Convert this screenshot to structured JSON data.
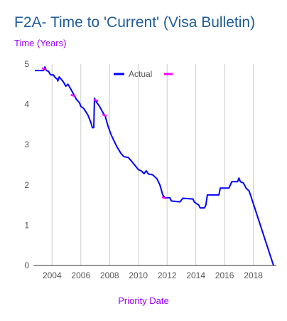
{
  "chart_data": {
    "type": "line",
    "title": "F2A- Time to 'Current' (Visa Bulletin)",
    "ylabel": "Time (Years)",
    "xlabel": "Priority Date",
    "xlim": [
      2002.7,
      2019.6
    ],
    "ylim": [
      0,
      5
    ],
    "x_ticks": [
      2004,
      2006,
      2008,
      2010,
      2012,
      2014,
      2016,
      2018
    ],
    "x_tick_labels": [
      "2004",
      "2006",
      "2008",
      "2010",
      "2012",
      "2014",
      "2016",
      "2018"
    ],
    "y_ticks": [
      0,
      1,
      2,
      3,
      4,
      5
    ],
    "y_tick_labels": [
      "0",
      "1",
      "2",
      "3",
      "4",
      "5"
    ],
    "grid": "vertical",
    "legend_position": "top-center",
    "series": [
      {
        "name": "Actual",
        "color": "#0000ff",
        "points": [
          [
            2002.8,
            4.84
          ],
          [
            2003.4,
            4.84
          ],
          [
            2003.5,
            4.93
          ],
          [
            2003.6,
            4.84
          ],
          [
            2003.75,
            4.82
          ],
          [
            2003.9,
            4.73
          ],
          [
            2004.1,
            4.73
          ],
          [
            2004.2,
            4.67
          ],
          [
            2004.35,
            4.63
          ],
          [
            2004.4,
            4.58
          ],
          [
            2004.5,
            4.68
          ],
          [
            2004.75,
            4.57
          ],
          [
            2004.85,
            4.52
          ],
          [
            2004.95,
            4.45
          ],
          [
            2005.1,
            4.5
          ],
          [
            2005.3,
            4.38
          ],
          [
            2005.5,
            4.25
          ],
          [
            2005.7,
            4.12
          ],
          [
            2005.9,
            4.04
          ],
          [
            2006.0,
            3.95
          ],
          [
            2006.2,
            3.9
          ],
          [
            2006.5,
            3.73
          ],
          [
            2006.7,
            3.55
          ],
          [
            2006.8,
            3.42
          ],
          [
            2006.9,
            3.42
          ],
          [
            2006.95,
            4.15
          ],
          [
            2007.1,
            4.05
          ],
          [
            2007.3,
            3.95
          ],
          [
            2007.5,
            3.82
          ],
          [
            2007.7,
            3.7
          ],
          [
            2007.9,
            3.45
          ],
          [
            2008.1,
            3.25
          ],
          [
            2008.3,
            3.1
          ],
          [
            2008.5,
            2.95
          ],
          [
            2008.8,
            2.78
          ],
          [
            2009.0,
            2.7
          ],
          [
            2009.3,
            2.68
          ],
          [
            2009.5,
            2.6
          ],
          [
            2009.8,
            2.47
          ],
          [
            2010.0,
            2.38
          ],
          [
            2010.2,
            2.35
          ],
          [
            2010.4,
            2.28
          ],
          [
            2010.55,
            2.35
          ],
          [
            2010.7,
            2.27
          ],
          [
            2011.0,
            2.25
          ],
          [
            2011.3,
            2.15
          ],
          [
            2011.5,
            2.0
          ],
          [
            2011.7,
            1.75
          ],
          [
            2011.85,
            1.68
          ],
          [
            2012.2,
            1.68
          ],
          [
            2012.3,
            1.6
          ],
          [
            2012.9,
            1.58
          ],
          [
            2013.1,
            1.67
          ],
          [
            2013.8,
            1.65
          ],
          [
            2013.9,
            1.57
          ],
          [
            2014.2,
            1.5
          ],
          [
            2014.3,
            1.43
          ],
          [
            2014.6,
            1.43
          ],
          [
            2014.7,
            1.5
          ],
          [
            2014.8,
            1.75
          ],
          [
            2015.6,
            1.75
          ],
          [
            2015.7,
            1.92
          ],
          [
            2016.3,
            1.92
          ],
          [
            2016.5,
            2.08
          ],
          [
            2016.9,
            2.08
          ],
          [
            2017.0,
            2.17
          ],
          [
            2017.1,
            2.08
          ],
          [
            2017.3,
            2.05
          ],
          [
            2017.5,
            1.92
          ],
          [
            2017.7,
            1.85
          ],
          [
            2017.8,
            1.75
          ],
          [
            2019.4,
            0.0
          ]
        ]
      },
      {
        "name": "",
        "color": "#ff00ff",
        "style": "dashed",
        "points": [
          [
            2003.45,
            4.88
          ],
          [
            2005.45,
            4.22
          ],
          [
            2007.05,
            4.1
          ],
          [
            2007.65,
            3.73
          ],
          [
            2011.8,
            1.68
          ]
        ]
      }
    ]
  }
}
